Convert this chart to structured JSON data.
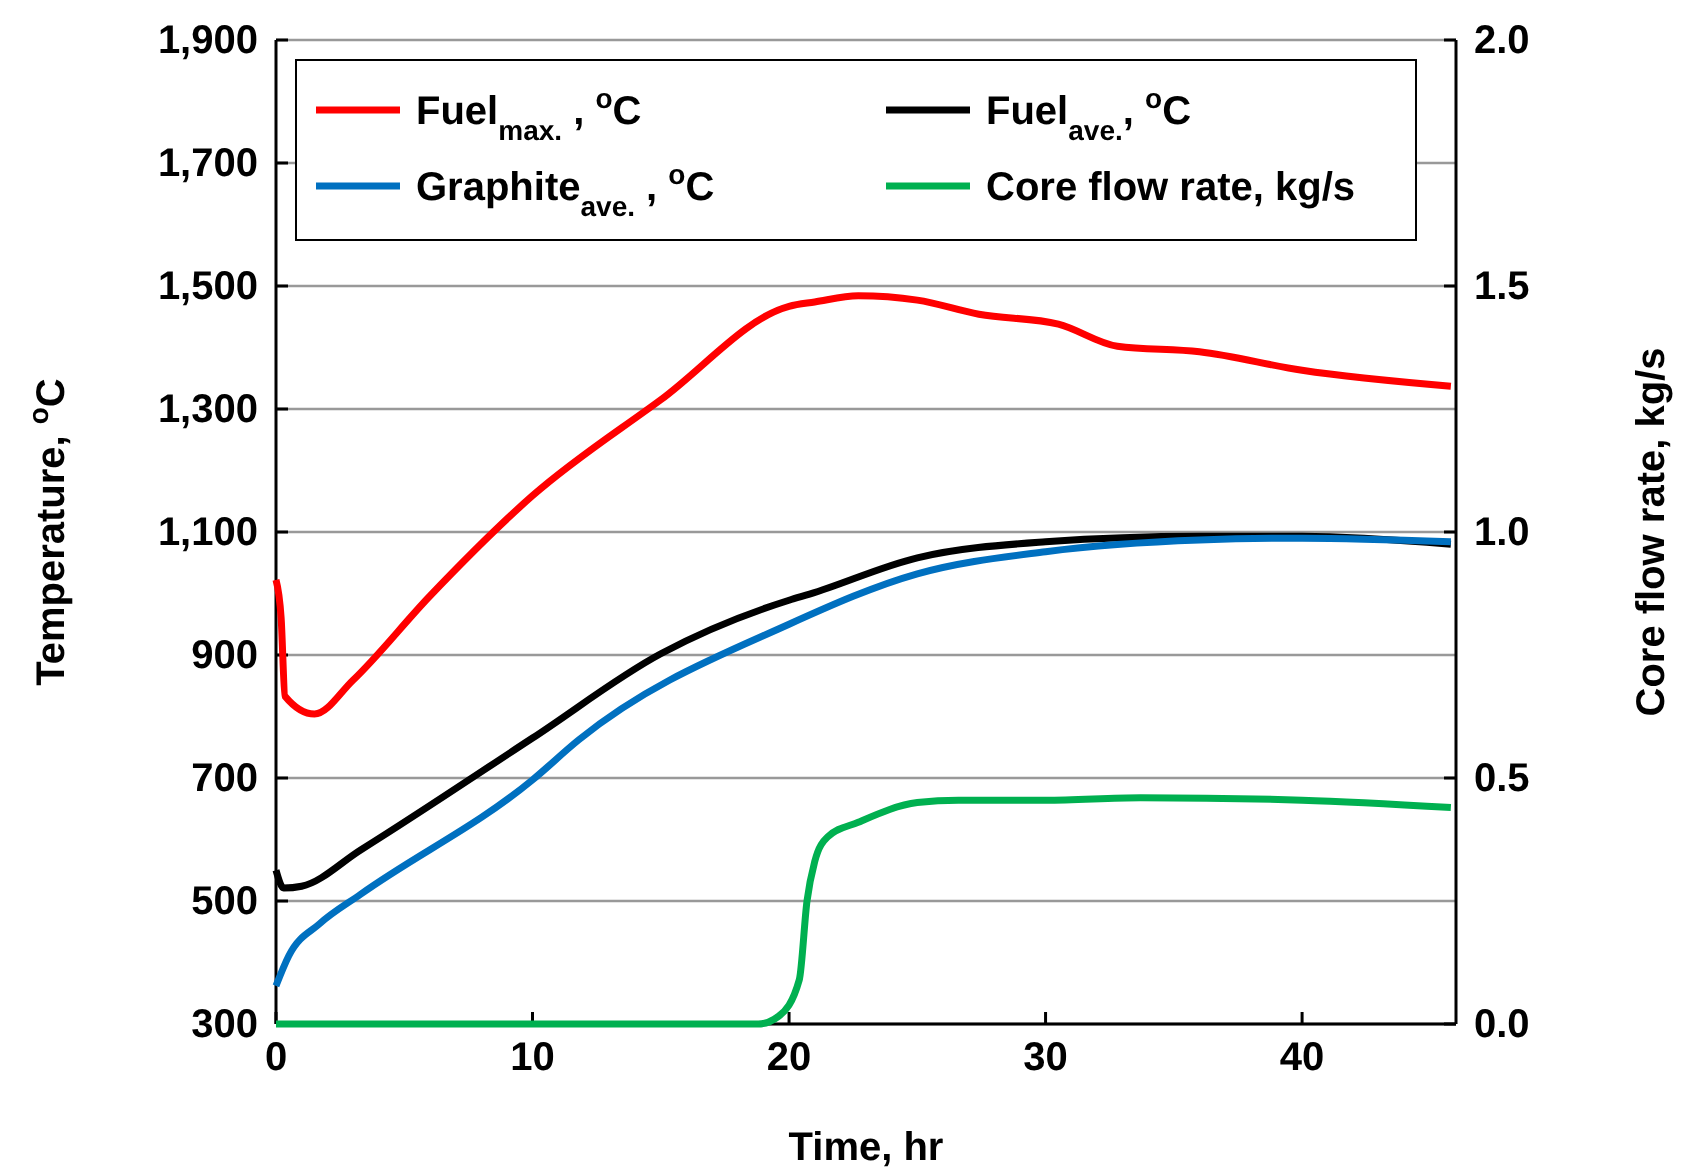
{
  "chart_data": {
    "type": "line",
    "xlabel": "Time, hr",
    "ylabel": "Temperature, $^{o}$C",
    "y2label": "Core flow rate, kg/s",
    "xlim": [
      0,
      46
    ],
    "xticks": [
      0,
      10,
      20,
      30,
      40
    ],
    "ylim": [
      300,
      1900
    ],
    "yticks": [
      {
        "value": 300,
        "label": "300"
      },
      {
        "value": 500,
        "label": "500"
      },
      {
        "value": 700,
        "label": "700"
      },
      {
        "value": 900,
        "label": "900"
      },
      {
        "value": 1100,
        "label": "1,100"
      },
      {
        "value": 1300,
        "label": "1,300"
      },
      {
        "value": 1500,
        "label": "1,500"
      },
      {
        "value": 1700,
        "label": "1,700"
      },
      {
        "value": 1900,
        "label": "1,900"
      }
    ],
    "y2lim": [
      0,
      2
    ],
    "y2ticks": [
      {
        "value": 0,
        "label": "0.0"
      },
      {
        "value": 0.5,
        "label": "0.5"
      },
      {
        "value": 1,
        "label": "1.0"
      },
      {
        "value": 1.5,
        "label": "1.5"
      },
      {
        "value": 2,
        "label": "2.0"
      }
    ],
    "grid": "y",
    "legend": "top",
    "marker": "none",
    "line_style": "solid",
    "series": [
      {
        "name": "Fuel$_{max.}$ , $^{o}$C",
        "color": "#ff0000",
        "x": [
          0,
          0.2,
          0.35,
          1.5,
          3,
          6,
          10,
          15,
          20,
          21,
          22.7,
          25,
          27.4,
          30.5,
          32.8,
          36,
          40,
          45.8
        ],
        "values": [
          1022,
          960,
          833,
          804,
          859,
          996,
          1159,
          1315,
          1467,
          1474,
          1484,
          1477,
          1454,
          1438,
          1402,
          1393,
          1363,
          1337
        ]
      },
      {
        "name": "Fuel$_{ave.}$, $^{o}$C",
        "color": "#000000",
        "x": [
          0,
          0.3,
          1,
          3.3,
          10,
          15,
          20,
          20.8,
          25,
          30,
          36,
          40,
          45.8
        ],
        "values": [
          550,
          521,
          524,
          583,
          765,
          902,
          989,
          999,
          1058,
          1084,
          1093,
          1093,
          1080
        ]
      },
      {
        "name": "Graphite$_{ave.}$ , $^{o}$C",
        "color": "#0070c0",
        "x": [
          0,
          0.5,
          1.7,
          3.3,
          10,
          11.8,
          20,
          25,
          30,
          36,
          40,
          45.8
        ],
        "values": [
          362,
          411,
          463,
          511,
          697,
          762,
          950,
          1032,
          1068,
          1087,
          1090,
          1084
        ]
      },
      {
        "name": "Core flow rate, kg/s",
        "color": "#00b050",
        "axis": "y2",
        "x": [
          0,
          10,
          18.8,
          19.6,
          20.4,
          20.7,
          21,
          21.5,
          22.7,
          25,
          26.6,
          30,
          33.7,
          40,
          45.8
        ],
        "values": [
          0,
          0,
          0,
          0.016,
          0.09,
          0.25,
          0.33,
          0.38,
          0.41,
          0.45,
          0.455,
          0.455,
          0.46,
          0.455,
          0.44
        ]
      }
    ]
  }
}
